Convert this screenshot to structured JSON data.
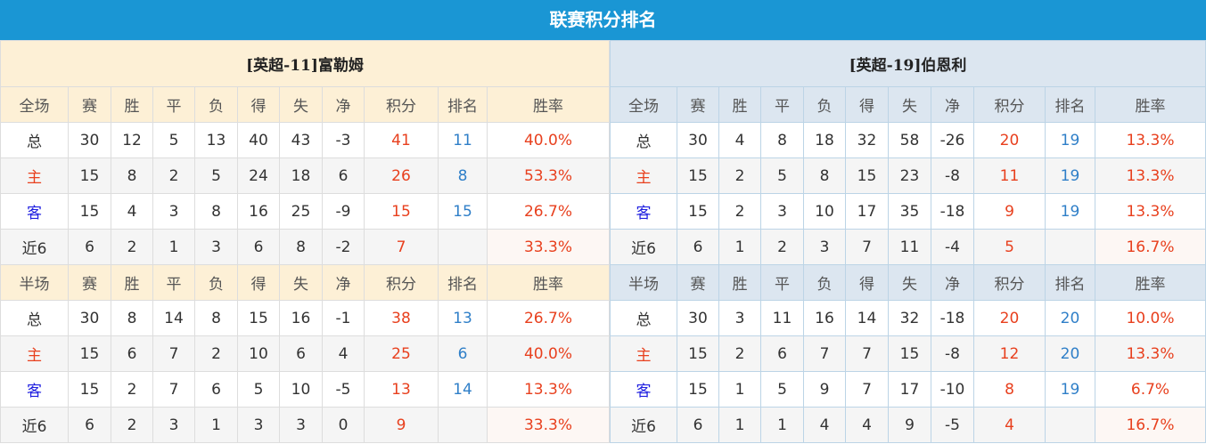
{
  "title": "联赛积分排名",
  "colors": {
    "title_bar": "#1a96d4",
    "points": "#e8401e",
    "rank": "#2f7fc8",
    "home": "#e8401e",
    "away": "#2020e0"
  },
  "teams": [
    {
      "name": "[英超-11]富勒姆",
      "sections": [
        {
          "header": [
            "全场",
            "赛",
            "胜",
            "平",
            "负",
            "得",
            "失",
            "净",
            "积分",
            "排名",
            "胜率"
          ],
          "rows": [
            [
              "总",
              "30",
              "12",
              "5",
              "13",
              "40",
              "43",
              "-3",
              "41",
              "11",
              "40.0%"
            ],
            [
              "主",
              "15",
              "8",
              "2",
              "5",
              "24",
              "18",
              "6",
              "26",
              "8",
              "53.3%"
            ],
            [
              "客",
              "15",
              "4",
              "3",
              "8",
              "16",
              "25",
              "-9",
              "15",
              "15",
              "26.7%"
            ],
            [
              "近6",
              "6",
              "2",
              "1",
              "3",
              "6",
              "8",
              "-2",
              "7",
              "",
              "33.3%"
            ]
          ]
        },
        {
          "header": [
            "半场",
            "赛",
            "胜",
            "平",
            "负",
            "得",
            "失",
            "净",
            "积分",
            "排名",
            "胜率"
          ],
          "rows": [
            [
              "总",
              "30",
              "8",
              "14",
              "8",
              "15",
              "16",
              "-1",
              "38",
              "13",
              "26.7%"
            ],
            [
              "主",
              "15",
              "6",
              "7",
              "2",
              "10",
              "6",
              "4",
              "25",
              "6",
              "40.0%"
            ],
            [
              "客",
              "15",
              "2",
              "7",
              "6",
              "5",
              "10",
              "-5",
              "13",
              "14",
              "13.3%"
            ],
            [
              "近6",
              "6",
              "2",
              "3",
              "1",
              "3",
              "3",
              "0",
              "9",
              "",
              "33.3%"
            ]
          ]
        }
      ]
    },
    {
      "name": "[英超-19]伯恩利",
      "sections": [
        {
          "header": [
            "全场",
            "赛",
            "胜",
            "平",
            "负",
            "得",
            "失",
            "净",
            "积分",
            "排名",
            "胜率"
          ],
          "rows": [
            [
              "总",
              "30",
              "4",
              "8",
              "18",
              "32",
              "58",
              "-26",
              "20",
              "19",
              "13.3%"
            ],
            [
              "主",
              "15",
              "2",
              "5",
              "8",
              "15",
              "23",
              "-8",
              "11",
              "19",
              "13.3%"
            ],
            [
              "客",
              "15",
              "2",
              "3",
              "10",
              "17",
              "35",
              "-18",
              "9",
              "19",
              "13.3%"
            ],
            [
              "近6",
              "6",
              "1",
              "2",
              "3",
              "7",
              "11",
              "-4",
              "5",
              "",
              "16.7%"
            ]
          ]
        },
        {
          "header": [
            "半场",
            "赛",
            "胜",
            "平",
            "负",
            "得",
            "失",
            "净",
            "积分",
            "排名",
            "胜率"
          ],
          "rows": [
            [
              "总",
              "30",
              "3",
              "11",
              "16",
              "14",
              "32",
              "-18",
              "20",
              "20",
              "10.0%"
            ],
            [
              "主",
              "15",
              "2",
              "6",
              "7",
              "7",
              "15",
              "-8",
              "12",
              "20",
              "13.3%"
            ],
            [
              "客",
              "15",
              "1",
              "5",
              "9",
              "7",
              "17",
              "-10",
              "8",
              "19",
              "6.7%"
            ],
            [
              "近6",
              "6",
              "1",
              "1",
              "4",
              "4",
              "9",
              "-5",
              "4",
              "",
              "16.7%"
            ]
          ]
        }
      ]
    }
  ]
}
